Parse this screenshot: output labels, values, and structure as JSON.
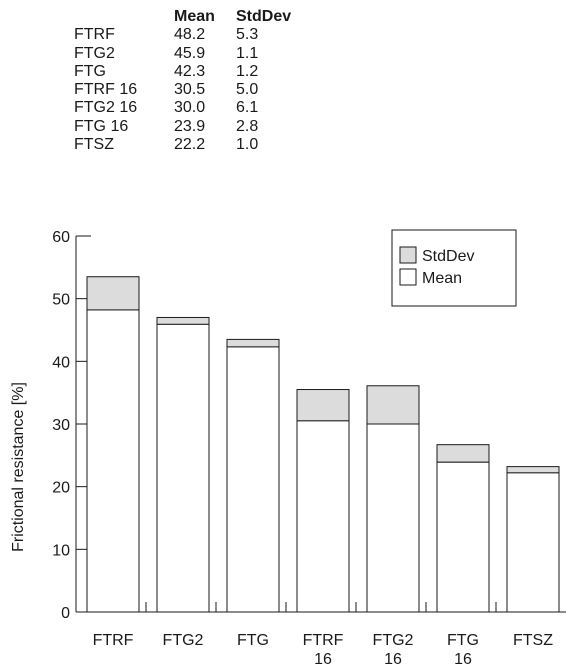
{
  "table": {
    "headers": [
      "",
      "Mean",
      "StdDev"
    ],
    "rows": [
      {
        "name": "FTRF",
        "mean": "48.2",
        "sd": "5.3"
      },
      {
        "name": "FTG2",
        "mean": "45.9",
        "sd": "1.1"
      },
      {
        "name": "FTG",
        "mean": "42.3",
        "sd": "1.2"
      },
      {
        "name": "FTRF 16",
        "mean": "30.5",
        "sd": "5.0"
      },
      {
        "name": "FTG2 16",
        "mean": "30.0",
        "sd": "6.1"
      },
      {
        "name": "FTG 16",
        "mean": "23.9",
        "sd": "2.8"
      },
      {
        "name": "FTSZ",
        "mean": "22.2",
        "sd": "1.0"
      }
    ]
  },
  "chart_data": {
    "type": "bar",
    "stacked": true,
    "categories": [
      [
        "FTRF"
      ],
      [
        "FTG2"
      ],
      [
        "FTG"
      ],
      [
        "FTRF",
        "16"
      ],
      [
        "FTG2",
        "16"
      ],
      [
        "FTG",
        "16"
      ],
      [
        "FTSZ"
      ]
    ],
    "series": [
      {
        "name": "Mean",
        "values": [
          48.2,
          45.9,
          42.3,
          30.5,
          30.0,
          23.9,
          22.2
        ],
        "color": "#ffffff"
      },
      {
        "name": "StdDev",
        "values": [
          5.3,
          1.1,
          1.2,
          5.0,
          6.1,
          2.8,
          1.0
        ],
        "color": "#dcdcdc"
      }
    ],
    "ylabel": "Frictional resistance [%]",
    "xlabel": "",
    "ylim": [
      0,
      60
    ],
    "yticks": [
      0,
      10,
      20,
      30,
      40,
      50,
      60
    ],
    "legend": {
      "position": "top-right",
      "order": [
        "StdDev",
        "Mean"
      ]
    },
    "grid": false
  }
}
